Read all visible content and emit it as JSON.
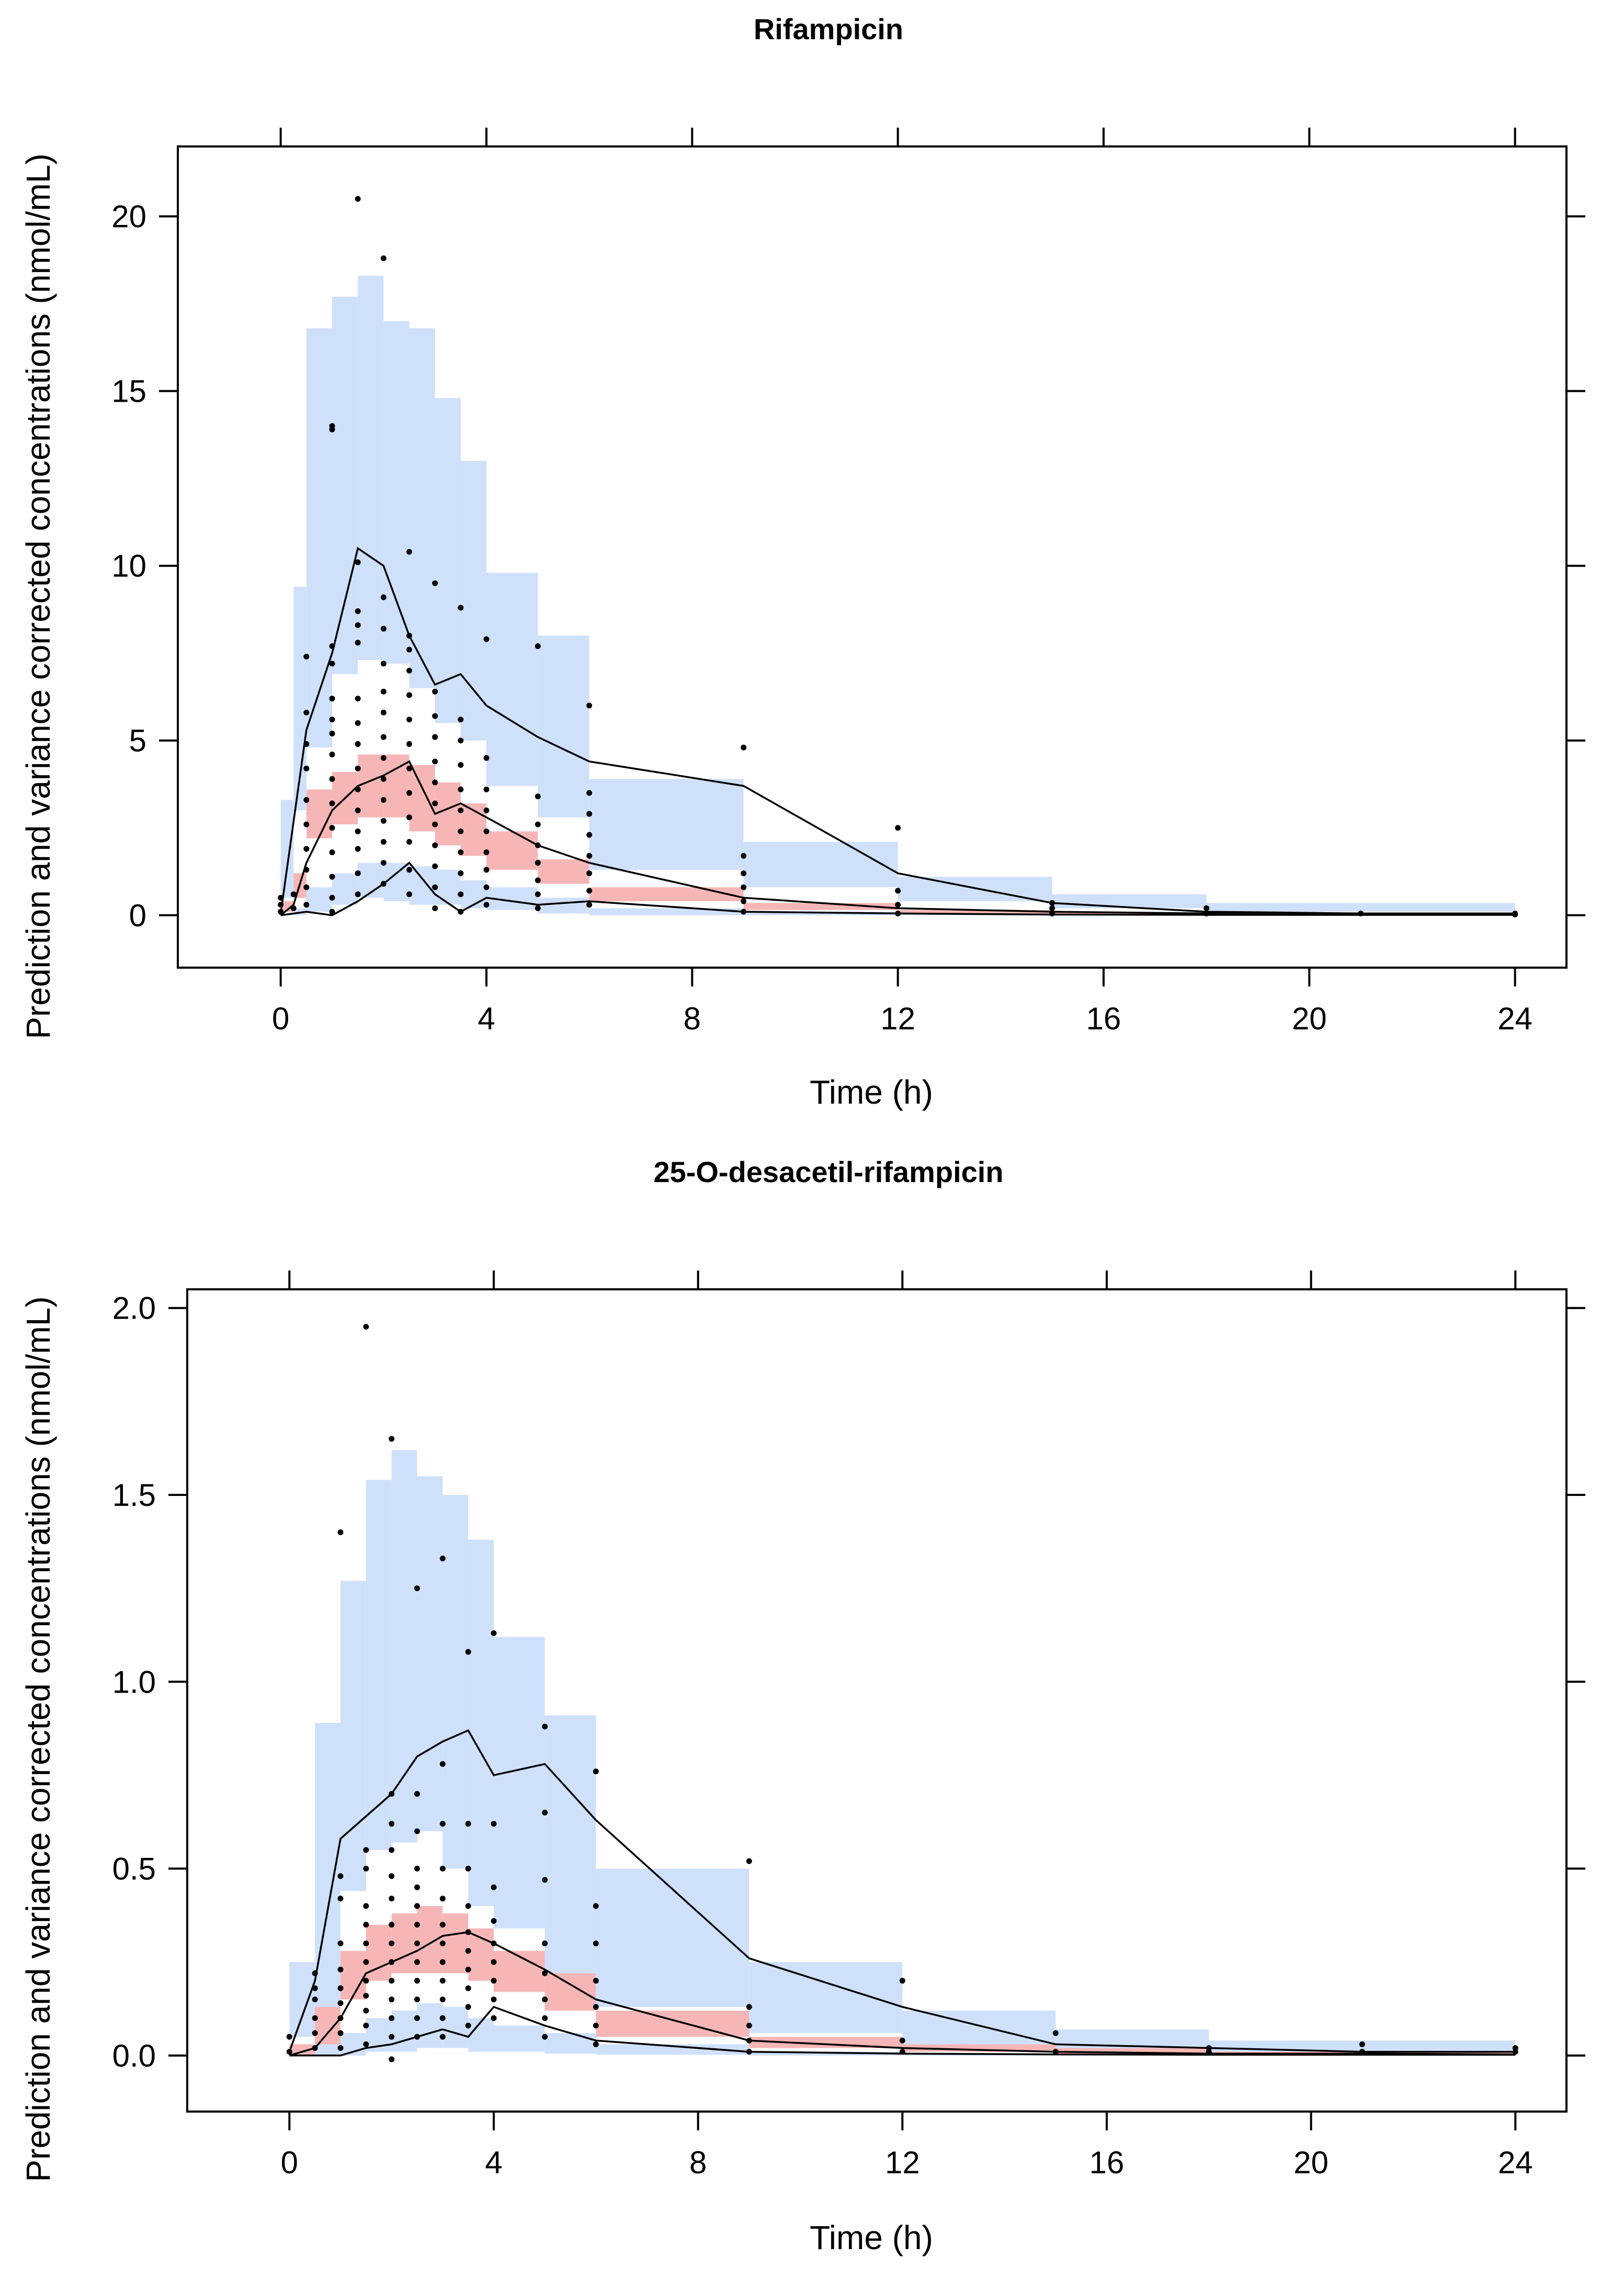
{
  "figure": {
    "panels": [
      "Rifampicin",
      "25-O-desacetil-rifampicin"
    ]
  },
  "chart_data": [
    {
      "type": "scatter",
      "title": "Rifampicin",
      "xlabel": "Time (h)",
      "ylabel": "Prediction and variance corrected concentrations (nmol/mL)",
      "xlim": [
        -2,
        25
      ],
      "ylim": [
        -1.5,
        22
      ],
      "xticks": [
        0,
        4,
        8,
        12,
        16,
        20,
        24
      ],
      "yticks": [
        0,
        5,
        10,
        15,
        20
      ],
      "legend": "none",
      "colors": {
        "pi_outer": "#cfe0fb",
        "pi_median": "#f7b6b6",
        "obs": "#000000"
      },
      "bins": [
        [
          0,
          0.25
        ],
        [
          0.25,
          0.5
        ],
        [
          0.5,
          1
        ],
        [
          1,
          1.5
        ],
        [
          1.5,
          2
        ],
        [
          2,
          2.5
        ],
        [
          2.5,
          3
        ],
        [
          3,
          3.5
        ],
        [
          3.5,
          4
        ],
        [
          4,
          5
        ],
        [
          5,
          6
        ],
        [
          6,
          9
        ],
        [
          9,
          12
        ],
        [
          12,
          15
        ],
        [
          15,
          18
        ],
        [
          18,
          21
        ],
        [
          21,
          24
        ]
      ],
      "pi_outer_upper": [
        3.3,
        9.4,
        16.8,
        17.7,
        18.3,
        17.0,
        16.8,
        14.8,
        13.0,
        9.8,
        8.0,
        3.9,
        2.1,
        1.1,
        0.6,
        0.35,
        0.35
      ],
      "pi_outer_upper_low": [
        0.5,
        3.0,
        4.8,
        6.9,
        7.3,
        7.2,
        6.5,
        5.5,
        5.0,
        3.7,
        2.8,
        1.3,
        0.8,
        0.4,
        0.2,
        0.1,
        0.1
      ],
      "pi_median": [
        [
          0.1,
          0.4
        ],
        [
          0.5,
          1.2
        ],
        [
          2.2,
          3.6
        ],
        [
          2.6,
          4.1
        ],
        [
          2.8,
          4.6
        ],
        [
          2.8,
          4.6
        ],
        [
          2.4,
          4.3
        ],
        [
          2.0,
          3.8
        ],
        [
          1.7,
          3.2
        ],
        [
          1.3,
          2.4
        ],
        [
          0.9,
          1.6
        ],
        [
          0.4,
          0.8
        ],
        [
          0.15,
          0.35
        ],
        [
          0.05,
          0.15
        ],
        [
          0.02,
          0.08
        ],
        [
          0.01,
          0.05
        ],
        [
          0.01,
          0.04
        ]
      ],
      "pi_lower": [
        [
          0,
          0.05
        ],
        [
          0,
          0.2
        ],
        [
          0.1,
          0.8
        ],
        [
          0.3,
          1.2
        ],
        [
          0.5,
          1.5
        ],
        [
          0.4,
          1.5
        ],
        [
          0.3,
          1.4
        ],
        [
          0.3,
          1.3
        ],
        [
          0.2,
          1.0
        ],
        [
          0.15,
          0.8
        ],
        [
          0.05,
          0.5
        ],
        [
          0,
          0.2
        ],
        [
          0,
          0.1
        ],
        [
          0,
          0.05
        ],
        [
          0,
          0.03
        ],
        [
          0,
          0.02
        ],
        [
          0,
          0.02
        ]
      ],
      "obs_p95": {
        "x": [
          0,
          0.5,
          1,
          1.5,
          2,
          2.5,
          3,
          3.5,
          4,
          5,
          6,
          9,
          12,
          15,
          18,
          21,
          24
        ],
        "y": [
          0.05,
          5.3,
          7.5,
          10.5,
          10.0,
          8.0,
          6.6,
          6.9,
          6.0,
          5.1,
          4.4,
          3.7,
          1.2,
          0.35,
          0.1,
          0.05,
          0.05
        ]
      },
      "obs_p50": {
        "x": [
          0,
          0.25,
          0.5,
          1,
          1.5,
          2,
          2.5,
          3,
          3.5,
          4,
          5,
          6,
          9,
          12,
          15,
          18,
          21,
          24
        ],
        "y": [
          0,
          0.3,
          1.5,
          3.0,
          3.7,
          4.0,
          4.4,
          2.9,
          3.2,
          2.8,
          2.0,
          1.5,
          0.5,
          0.2,
          0.1,
          0.05,
          0.03,
          0.02
        ]
      },
      "obs_p5": {
        "x": [
          0,
          0.5,
          1,
          1.5,
          2,
          2.5,
          3,
          3.5,
          4,
          5,
          6,
          9,
          12,
          15,
          18,
          21,
          24
        ],
        "y": [
          0,
          0.1,
          0,
          0.4,
          0.9,
          1.5,
          0.6,
          0.1,
          0.5,
          0.3,
          0.4,
          0.1,
          0.05,
          0.02,
          0.01,
          0.01,
          0.01
        ]
      },
      "obs_points": {
        "x": [
          0,
          0,
          0,
          0.25,
          0.25,
          0.5,
          0.5,
          0.5,
          0.5,
          0.5,
          0.5,
          0.5,
          0.5,
          0.5,
          0.5,
          1,
          1,
          1,
          1,
          1,
          1,
          1,
          1,
          1,
          1,
          1,
          1,
          1,
          1,
          1,
          1.5,
          1.5,
          1.5,
          1.5,
          1.5,
          1.5,
          1.5,
          1.5,
          1.5,
          1.5,
          1.5,
          1.5,
          1.5,
          1.5,
          1.5,
          2,
          2,
          2,
          2,
          2,
          2,
          2,
          2,
          2,
          2,
          2,
          2,
          2,
          2,
          2.5,
          2.5,
          2.5,
          2.5,
          2.5,
          2.5,
          2.5,
          2.5,
          2.5,
          2.5,
          2.5,
          2.5,
          2.5,
          3,
          3,
          3,
          3,
          3,
          3,
          3,
          3,
          3,
          3,
          3,
          3,
          3.5,
          3.5,
          3.5,
          3.5,
          3.5,
          3.5,
          3.5,
          3.5,
          3.5,
          3.5,
          3.5,
          4,
          4,
          4,
          4,
          4,
          4,
          4,
          4,
          4,
          5,
          5,
          5,
          5,
          5,
          5,
          5,
          5,
          6,
          6,
          6,
          6,
          6,
          6,
          6,
          6,
          9,
          9,
          9,
          9,
          9,
          9,
          12,
          12,
          12,
          12,
          15,
          15,
          15,
          18,
          18,
          21,
          24,
          24
        ],
        "y": [
          0.1,
          0.3,
          0.5,
          0.2,
          0.6,
          0.3,
          0.8,
          1.3,
          1.9,
          2.6,
          3.3,
          4.2,
          4.9,
          5.8,
          7.4,
          0.1,
          0.5,
          1.1,
          1.8,
          2.5,
          3.2,
          3.9,
          4.6,
          5.2,
          5.6,
          6.2,
          7.2,
          7.7,
          13.9,
          14.0,
          0.6,
          1.2,
          1.9,
          2.4,
          3.0,
          3.6,
          4.2,
          4.9,
          5.5,
          6.2,
          7.8,
          8.3,
          8.7,
          10.1,
          20.5,
          0.9,
          1.5,
          2.1,
          2.7,
          3.3,
          3.9,
          4.5,
          5.1,
          5.8,
          6.4,
          7.2,
          8.2,
          9.1,
          18.8,
          0.6,
          1.3,
          2.1,
          2.8,
          3.5,
          4.2,
          4.9,
          5.6,
          6.3,
          7.0,
          7.6,
          8.0,
          10.4,
          0.2,
          0.8,
          1.4,
          2.0,
          2.6,
          3.2,
          3.8,
          4.4,
          5.1,
          5.7,
          6.4,
          9.5,
          0.1,
          0.6,
          1.2,
          1.8,
          2.4,
          3.0,
          3.6,
          4.3,
          5.0,
          5.6,
          8.8,
          0.3,
          0.8,
          1.3,
          1.8,
          2.4,
          3.0,
          3.6,
          4.5,
          7.9,
          0.2,
          0.6,
          1.0,
          1.5,
          2.0,
          2.6,
          3.4,
          7.7,
          0.3,
          0.7,
          1.2,
          1.7,
          2.3,
          2.9,
          3.5,
          6.0,
          0.1,
          0.4,
          0.8,
          1.2,
          1.7,
          4.8,
          0.05,
          0.3,
          0.7,
          2.5,
          0.05,
          0.2,
          0.35,
          0.05,
          0.2,
          0.05,
          0.02,
          0.05
        ]
      }
    },
    {
      "type": "scatter",
      "title": "25-O-desacetil-rifampicin",
      "xlabel": "Time (h)",
      "ylabel": "Prediction and variance corrected concentrations (nmol/mL)",
      "xlim": [
        -2,
        25
      ],
      "ylim": [
        -0.15,
        2.05
      ],
      "xticks": [
        0,
        4,
        8,
        12,
        16,
        20,
        24
      ],
      "yticks": [
        0.0,
        0.5,
        1.0,
        1.5,
        2.0
      ],
      "ytick_labels": [
        "0.0",
        "0.5",
        "1.0",
        "1.5",
        "2.0"
      ],
      "legend": "none",
      "colors": {
        "pi_outer": "#cfe0fb",
        "pi_median": "#f7b6b6",
        "obs": "#000000"
      },
      "bins": [
        [
          0,
          0.5
        ],
        [
          0.5,
          1
        ],
        [
          1,
          1.5
        ],
        [
          1.5,
          2
        ],
        [
          2,
          2.5
        ],
        [
          2.5,
          3
        ],
        [
          3,
          3.5
        ],
        [
          3.5,
          4
        ],
        [
          4,
          5
        ],
        [
          5,
          6
        ],
        [
          6,
          9
        ],
        [
          9,
          12
        ],
        [
          12,
          15
        ],
        [
          15,
          18
        ],
        [
          18,
          21
        ],
        [
          21,
          24
        ]
      ],
      "pi_outer_upper": [
        0.25,
        0.89,
        1.27,
        1.54,
        1.62,
        1.55,
        1.5,
        1.38,
        1.12,
        0.91,
        0.5,
        0.25,
        0.12,
        0.07,
        0.04,
        0.04
      ],
      "pi_outer_upper_low": [
        0.05,
        0.12,
        0.44,
        0.55,
        0.57,
        0.6,
        0.5,
        0.4,
        0.34,
        0.2,
        0.13,
        0.06,
        0.03,
        0.02,
        0.01,
        0.01
      ],
      "pi_median": [
        [
          0.0,
          0.03
        ],
        [
          0.03,
          0.13
        ],
        [
          0.15,
          0.28
        ],
        [
          0.2,
          0.35
        ],
        [
          0.22,
          0.38
        ],
        [
          0.22,
          0.4
        ],
        [
          0.22,
          0.38
        ],
        [
          0.2,
          0.34
        ],
        [
          0.17,
          0.28
        ],
        [
          0.12,
          0.22
        ],
        [
          0.05,
          0.12
        ],
        [
          0.02,
          0.05
        ],
        [
          0.01,
          0.03
        ],
        [
          0.005,
          0.02
        ],
        [
          0.003,
          0.01
        ],
        [
          0.002,
          0.01
        ]
      ],
      "pi_lower": [
        [
          0,
          0.01
        ],
        [
          0,
          0.03
        ],
        [
          0,
          0.06
        ],
        [
          0.01,
          0.1
        ],
        [
          0.01,
          0.12
        ],
        [
          0.02,
          0.14
        ],
        [
          0.02,
          0.13
        ],
        [
          0.01,
          0.1
        ],
        [
          0.01,
          0.08
        ],
        [
          0.005,
          0.06
        ],
        [
          0.002,
          0.03
        ],
        [
          0,
          0.01
        ],
        [
          0,
          0.005
        ],
        [
          0,
          0.003
        ],
        [
          0,
          0.002
        ],
        [
          0,
          0.002
        ]
      ],
      "obs_p95": {
        "x": [
          0,
          0.5,
          1,
          1.5,
          2,
          2.5,
          3,
          3.5,
          4,
          5,
          6,
          9,
          12,
          15,
          18,
          21,
          24
        ],
        "y": [
          0.01,
          0.2,
          0.58,
          0.64,
          0.7,
          0.8,
          0.84,
          0.87,
          0.75,
          0.78,
          0.63,
          0.26,
          0.13,
          0.03,
          0.02,
          0.01,
          0.01
        ]
      },
      "obs_p50": {
        "x": [
          0,
          0.5,
          1,
          1.5,
          2,
          2.5,
          3,
          3.5,
          4,
          5,
          6,
          9,
          12,
          15,
          18,
          21,
          24
        ],
        "y": [
          0.0,
          0.02,
          0.1,
          0.22,
          0.25,
          0.28,
          0.32,
          0.33,
          0.3,
          0.23,
          0.15,
          0.04,
          0.02,
          0.01,
          0.005,
          0.005,
          0.003
        ]
      },
      "obs_p5": {
        "x": [
          0,
          0.5,
          1,
          1.5,
          2,
          2.5,
          3,
          3.5,
          4,
          5,
          6,
          9,
          12,
          15,
          18,
          21,
          24
        ],
        "y": [
          0.0,
          0.0,
          0.0,
          0.02,
          0.03,
          0.05,
          0.07,
          0.05,
          0.13,
          0.08,
          0.04,
          0.01,
          0.005,
          0.003,
          0.002,
          0.002,
          0.002
        ]
      },
      "obs_points": {
        "x": [
          0,
          0,
          0.5,
          0.5,
          0.5,
          0.5,
          0.5,
          0.5,
          1,
          1,
          1,
          1,
          1,
          1,
          1,
          1,
          1,
          1,
          1.5,
          1.5,
          1.5,
          1.5,
          1.5,
          1.5,
          1.5,
          1.5,
          1.5,
          1.5,
          1.5,
          1.5,
          2,
          2,
          2,
          2,
          2,
          2,
          2,
          2,
          2,
          2,
          2,
          2,
          2,
          2,
          2.5,
          2.5,
          2.5,
          2.5,
          2.5,
          2.5,
          2.5,
          2.5,
          2.5,
          2.5,
          2.5,
          2.5,
          2.5,
          3,
          3,
          3,
          3,
          3,
          3,
          3,
          3,
          3,
          3,
          3,
          3,
          3.5,
          3.5,
          3.5,
          3.5,
          3.5,
          3.5,
          3.5,
          3.5,
          3.5,
          3.5,
          4,
          4,
          4,
          4,
          4,
          4,
          4,
          4,
          4,
          5,
          5,
          5,
          5,
          5,
          5,
          5,
          5,
          6,
          6,
          6,
          6,
          6,
          6,
          6,
          9,
          9,
          9,
          9,
          9,
          12,
          12,
          12,
          15,
          15,
          18,
          18,
          21,
          21,
          24,
          24
        ],
        "y": [
          0.01,
          0.05,
          0.02,
          0.06,
          0.1,
          0.15,
          0.18,
          0.22,
          0.02,
          0.06,
          0.1,
          0.14,
          0.18,
          0.23,
          0.3,
          0.42,
          0.48,
          1.4,
          0.03,
          0.08,
          0.12,
          0.16,
          0.2,
          0.25,
          0.3,
          0.35,
          0.4,
          0.5,
          0.55,
          1.95,
          -0.01,
          0.05,
          0.1,
          0.15,
          0.2,
          0.25,
          0.3,
          0.35,
          0.42,
          0.48,
          0.55,
          0.62,
          1.65,
          0.7,
          0.05,
          0.1,
          0.15,
          0.2,
          0.25,
          0.3,
          0.35,
          0.4,
          0.45,
          0.5,
          0.6,
          0.7,
          1.25,
          0.05,
          0.1,
          0.15,
          0.2,
          0.25,
          0.3,
          0.35,
          0.42,
          0.5,
          0.62,
          0.78,
          1.33,
          0.08,
          0.13,
          0.18,
          0.23,
          0.28,
          0.33,
          0.4,
          0.5,
          0.62,
          1.08,
          0.1,
          0.15,
          0.2,
          0.25,
          0.3,
          0.36,
          0.45,
          0.62,
          1.13,
          0.05,
          0.1,
          0.15,
          0.22,
          0.3,
          0.47,
          0.65,
          0.88,
          0.03,
          0.08,
          0.13,
          0.2,
          0.3,
          0.4,
          0.76,
          0.01,
          0.04,
          0.08,
          0.13,
          0.52,
          0.01,
          0.04,
          0.2,
          0.01,
          0.06,
          0.01,
          0.02,
          0.01,
          0.03,
          0.01,
          0.02
        ]
      }
    }
  ]
}
